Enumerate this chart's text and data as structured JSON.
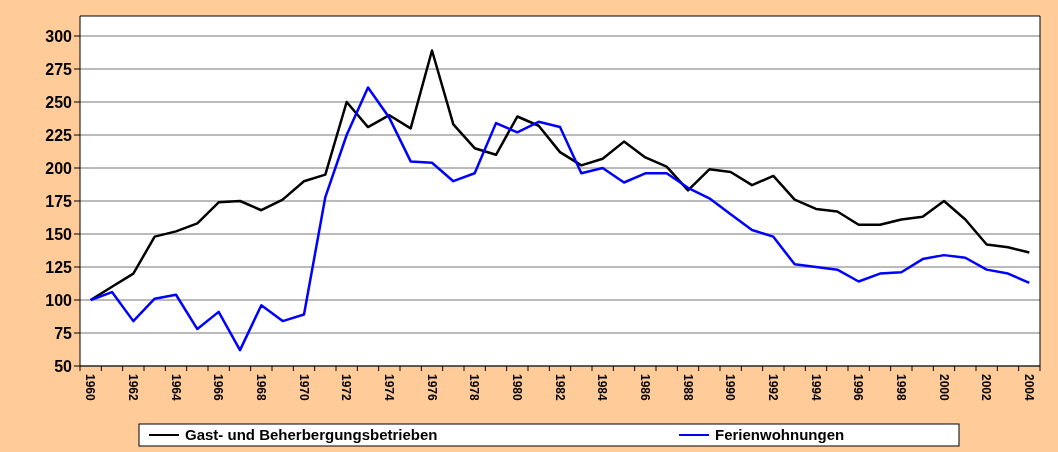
{
  "chart_data": {
    "type": "line",
    "categories": [
      "1960",
      null,
      "1962",
      null,
      "1964",
      null,
      "1966",
      null,
      "1968",
      null,
      "1970",
      null,
      "1972",
      null,
      "1974",
      null,
      "1976",
      null,
      "1978",
      null,
      "1980",
      null,
      "1982",
      null,
      "1984",
      null,
      "1986",
      null,
      "1988",
      null,
      "1990",
      null,
      "1992",
      null,
      "1994",
      null,
      "1996",
      null,
      "1998",
      null,
      "2000",
      null,
      "2002",
      null,
      "2004"
    ],
    "series": [
      {
        "name": "Gast- und Beherbergungsbetrieben",
        "color": "#000000",
        "values": [
          100,
          110,
          120,
          148,
          152,
          158,
          174,
          175,
          168,
          176,
          190,
          195,
          250,
          231,
          240,
          230,
          289,
          233,
          215,
          210,
          239,
          232,
          212,
          202,
          207,
          220,
          208,
          201,
          183,
          199,
          197,
          187,
          194,
          176,
          169,
          167,
          157,
          157,
          161,
          163,
          175,
          161,
          142,
          140,
          136
        ]
      },
      {
        "name": "Ferienwohnungen",
        "color": "#0000ff",
        "values": [
          100,
          106,
          84,
          101,
          104,
          78,
          91,
          62,
          96,
          84,
          89,
          178,
          225,
          261,
          238,
          205,
          204,
          190,
          196,
          234,
          227,
          235,
          231,
          196,
          200,
          189,
          196,
          196,
          185,
          177,
          165,
          153,
          148,
          127,
          125,
          123,
          114,
          120,
          121,
          131,
          134,
          132,
          123,
          120,
          113
        ]
      }
    ],
    "ylim": [
      50,
      300
    ],
    "yticks": [
      50,
      75,
      100,
      125,
      150,
      175,
      200,
      225,
      250,
      275,
      300
    ],
    "grid": "y",
    "legend": "bottom",
    "marker": "none",
    "line_style": "solid"
  }
}
